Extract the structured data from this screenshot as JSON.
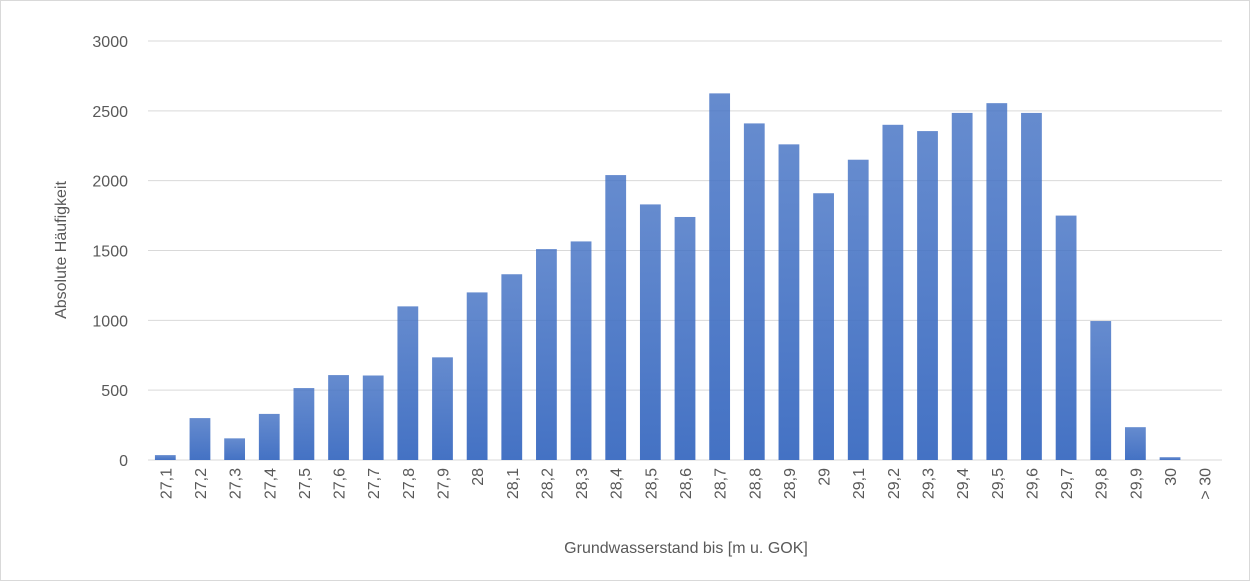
{
  "chart_data": {
    "type": "bar",
    "categories": [
      "27,1",
      "27,2",
      "27,3",
      "27,4",
      "27,5",
      "27,6",
      "27,7",
      "27,8",
      "27,9",
      "28",
      "28,1",
      "28,2",
      "28,3",
      "28,4",
      "28,5",
      "28,6",
      "28,7",
      "28,8",
      "28,9",
      "29",
      "29,1",
      "29,2",
      "29,3",
      "29,4",
      "29,5",
      "29,6",
      "29,7",
      "29,8",
      "29,9",
      "30",
      "> 30"
    ],
    "values": [
      35,
      300,
      155,
      330,
      515,
      608,
      605,
      1100,
      735,
      1200,
      1330,
      1510,
      1565,
      2040,
      1830,
      1740,
      2625,
      2410,
      2260,
      1910,
      2150,
      2400,
      2355,
      2485,
      2555,
      2485,
      1750,
      995,
      235,
      20,
      0
    ],
    "color": "#4472c4",
    "ylim": [
      0,
      3000
    ],
    "yticks": [
      0,
      500,
      1000,
      1500,
      2000,
      2500,
      3000
    ],
    "grid": true,
    "xlabel": "Grundwasserstand bis [m u. GOK]",
    "ylabel": "Absolute Häufigkeit"
  }
}
